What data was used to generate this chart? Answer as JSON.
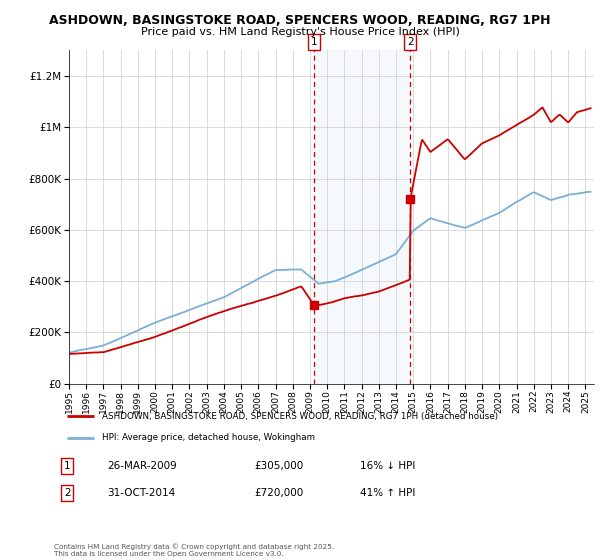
{
  "title": "ASHDOWN, BASINGSTOKE ROAD, SPENCERS WOOD, READING, RG7 1PH",
  "subtitle": "Price paid vs. HM Land Registry's House Price Index (HPI)",
  "legend_line1": "ASHDOWN, BASINGSTOKE ROAD, SPENCERS WOOD, READING, RG7 1PH (detached house)",
  "legend_line2": "HPI: Average price, detached house, Wokingham",
  "annotation1_label": "1",
  "annotation1_date": "26-MAR-2009",
  "annotation1_price": "£305,000",
  "annotation1_hpi": "16% ↓ HPI",
  "annotation2_label": "2",
  "annotation2_date": "31-OCT-2014",
  "annotation2_price": "£720,000",
  "annotation2_hpi": "41% ↑ HPI",
  "copyright": "Contains HM Land Registry data © Crown copyright and database right 2025.\nThis data is licensed under the Open Government Licence v3.0.",
  "price_color": "#cc0000",
  "hpi_color": "#7bafd4",
  "annotation_box_color": "#cc0000",
  "marker1_x": 2009.23,
  "marker1_y": 305000,
  "marker2_x": 2014.83,
  "marker2_y": 720000,
  "ylim": [
    0,
    1300000
  ],
  "xlim_start": 1995,
  "xlim_end": 2025.5
}
